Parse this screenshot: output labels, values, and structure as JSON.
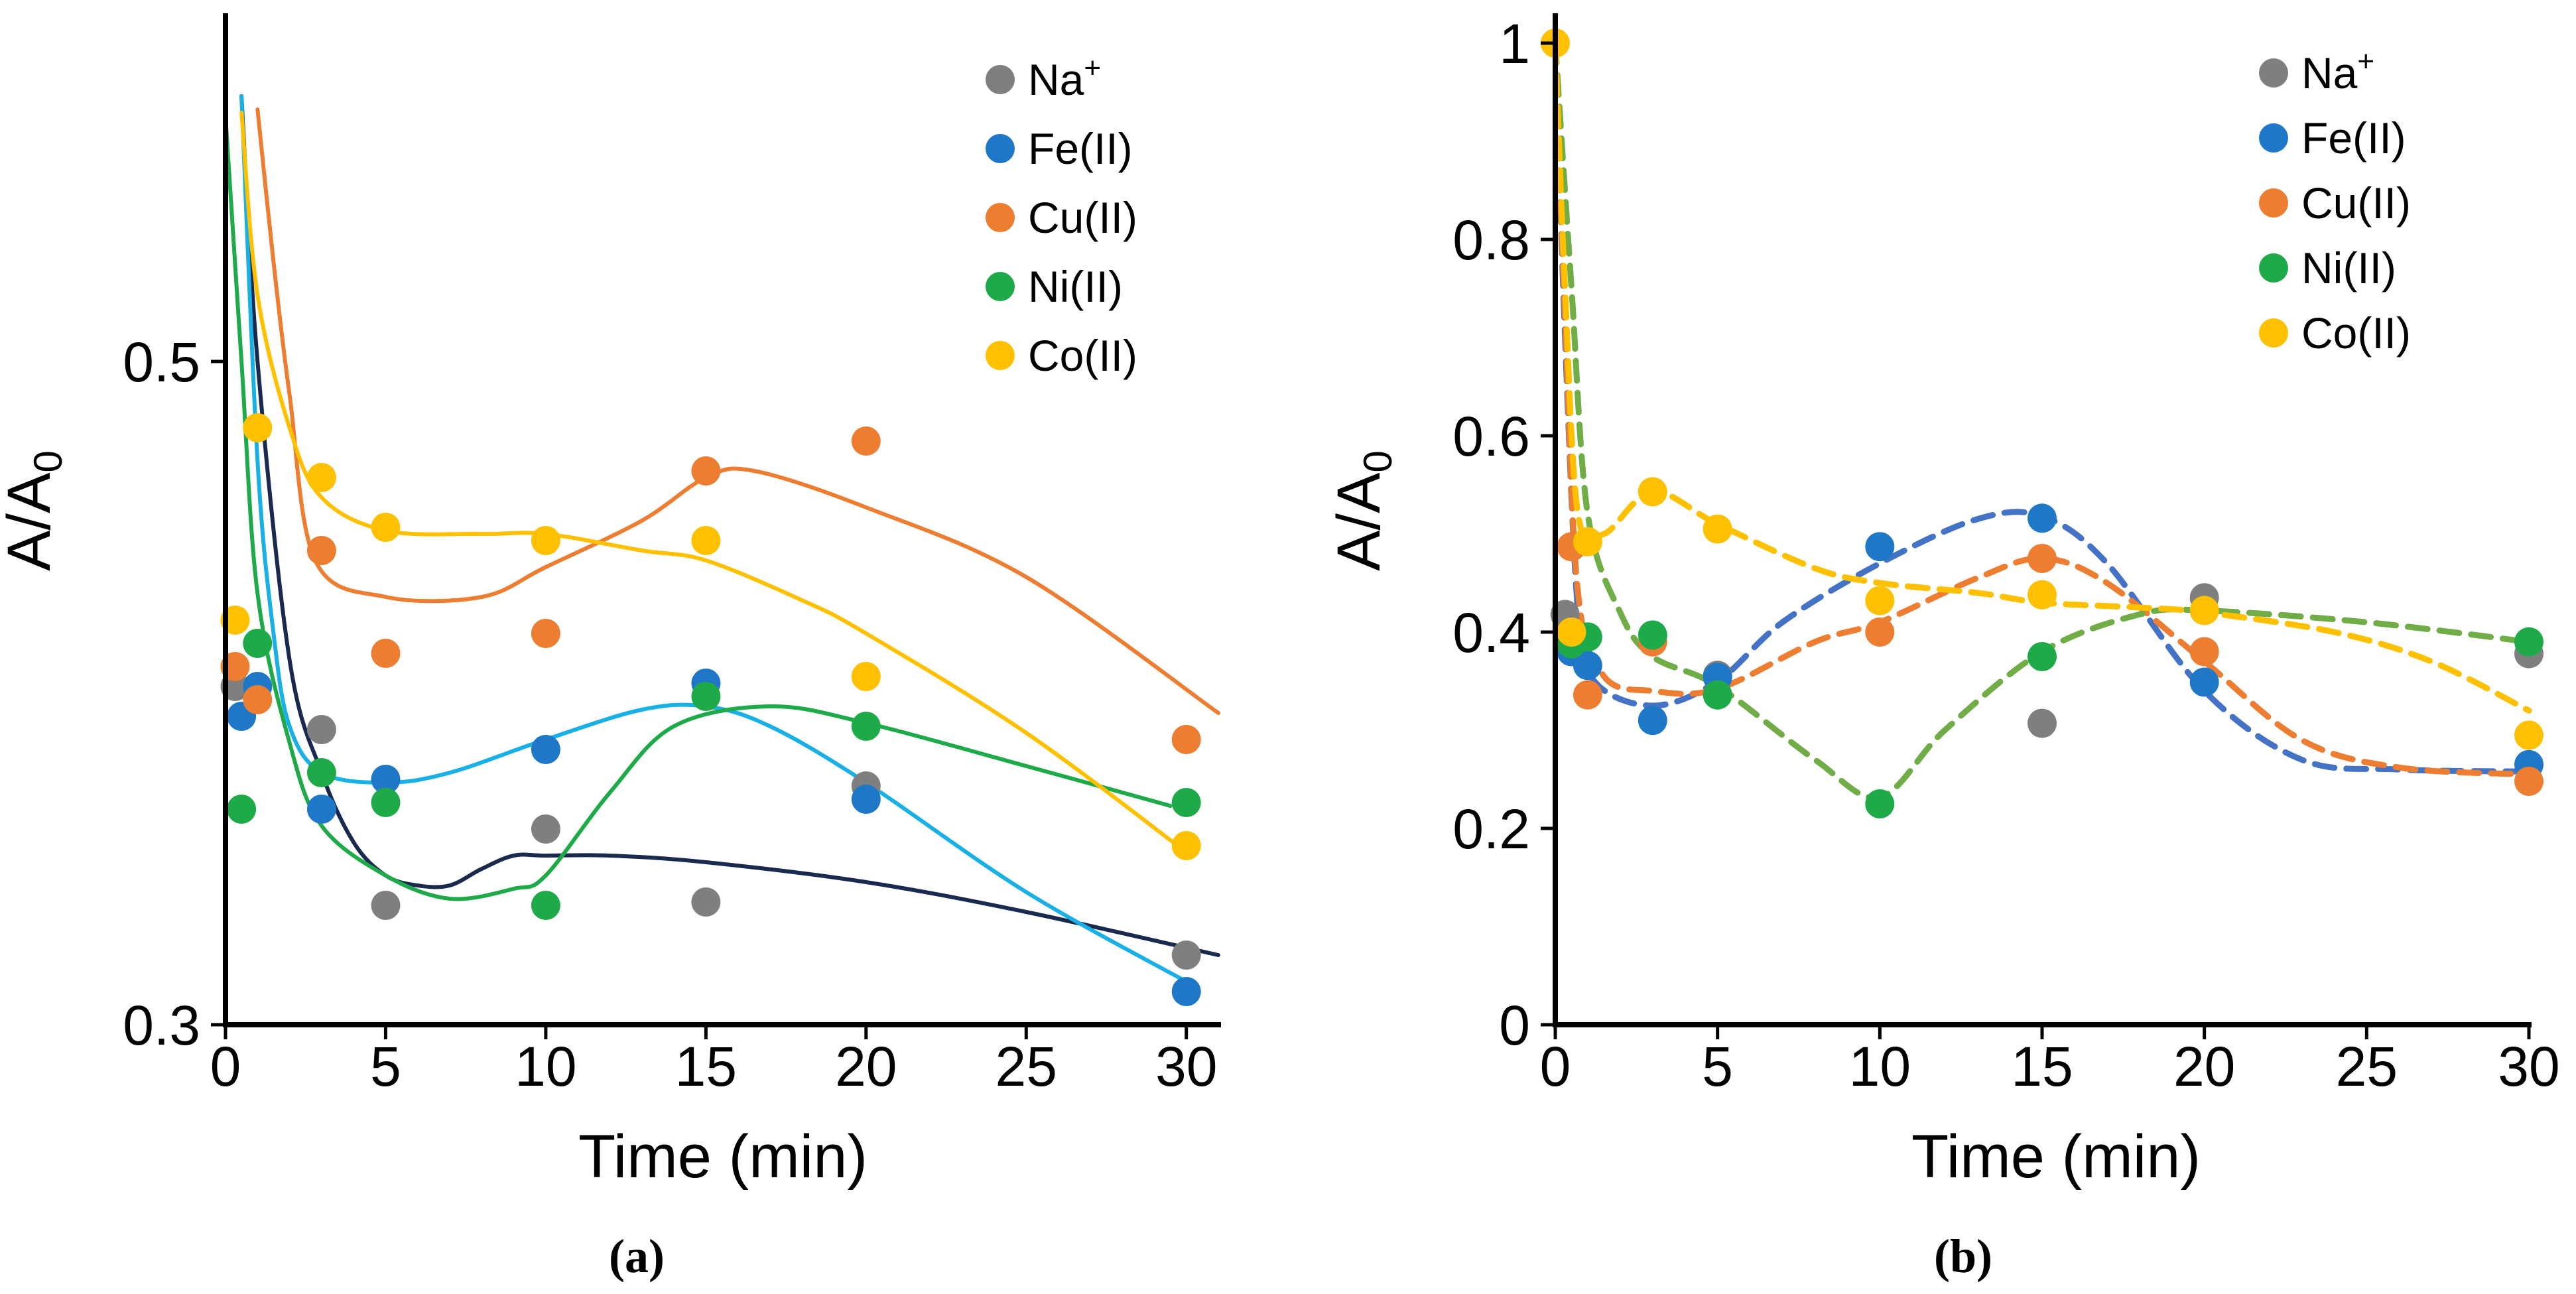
{
  "chart_data": [
    {
      "panel": "a",
      "type": "scatter",
      "panel_label": "(a)",
      "xlabel": "Time (min)",
      "ylabel": "A/A",
      "ylabel_sub": "0",
      "xlim": [
        0,
        31
      ],
      "ylim": [
        0.3,
        0.6
      ],
      "xticks": [
        0,
        5,
        10,
        15,
        20,
        25,
        30
      ],
      "yticks": [
        0.3,
        0.5
      ],
      "ytick_labels": [
        "0.3",
        "0.5"
      ],
      "legend_position": "top-right",
      "series": [
        {
          "name": "Na",
          "sup": "+",
          "color": "#7f7f7f",
          "points": [
            [
              0.3,
              0.402
            ],
            [
              3,
              0.389
            ],
            [
              5,
              0.336
            ],
            [
              10,
              0.359
            ],
            [
              15,
              0.337
            ],
            [
              20,
              0.372
            ],
            [
              30,
              0.321
            ]
          ],
          "curve": [
            [
              0.5,
              0.58
            ],
            [
              1,
              0.5
            ],
            [
              2,
              0.41
            ],
            [
              3,
              0.376
            ],
            [
              4,
              0.355
            ],
            [
              5,
              0.345
            ],
            [
              6,
              0.342
            ],
            [
              7,
              0.342
            ],
            [
              8,
              0.347
            ],
            [
              9,
              0.351
            ],
            [
              10,
              0.351
            ],
            [
              12,
              0.351
            ],
            [
              15,
              0.349
            ],
            [
              20,
              0.343
            ],
            [
              25,
              0.334
            ],
            [
              31,
              0.321
            ]
          ]
        },
        {
          "name": "Fe(II)",
          "color": "#1f77c8",
          "points": [
            [
              0.5,
              0.393
            ],
            [
              1,
              0.402
            ],
            [
              3,
              0.365
            ],
            [
              5,
              0.374
            ],
            [
              10,
              0.383
            ],
            [
              15,
              0.403
            ],
            [
              20,
              0.368
            ],
            [
              30,
              0.31
            ]
          ],
          "curve": [
            [
              0.5,
              0.58
            ],
            [
              1,
              0.47
            ],
            [
              1.5,
              0.418
            ],
            [
              2,
              0.39
            ],
            [
              3,
              0.376
            ],
            [
              5,
              0.373
            ],
            [
              7,
              0.376
            ],
            [
              10,
              0.386
            ],
            [
              13,
              0.395
            ],
            [
              15,
              0.396
            ],
            [
              17,
              0.39
            ],
            [
              20,
              0.373
            ],
            [
              25,
              0.34
            ],
            [
              30,
              0.313
            ]
          ]
        },
        {
          "name": "Cu(II)",
          "color": "#ed7d31",
          "points": [
            [
              0.3,
              0.408
            ],
            [
              1,
              0.398
            ],
            [
              3,
              0.443
            ],
            [
              5,
              0.412
            ],
            [
              10,
              0.418
            ],
            [
              15,
              0.467
            ],
            [
              20,
              0.476
            ],
            [
              30,
              0.386
            ]
          ],
          "curve": [
            [
              1,
              0.576
            ],
            [
              1.5,
              0.53
            ],
            [
              2,
              0.49
            ],
            [
              2.8,
              0.44
            ],
            [
              5,
              0.429
            ],
            [
              8,
              0.429
            ],
            [
              10,
              0.438
            ],
            [
              13,
              0.452
            ],
            [
              15,
              0.465
            ],
            [
              16.5,
              0.467
            ],
            [
              20,
              0.456
            ],
            [
              25,
              0.435
            ],
            [
              31,
              0.394
            ]
          ]
        },
        {
          "name": "Ni(II)",
          "color": "#1faa4a",
          "points": [
            [
              0.5,
              0.365
            ],
            [
              1,
              0.415
            ],
            [
              3,
              0.376
            ],
            [
              5,
              0.367
            ],
            [
              10,
              0.336
            ],
            [
              15,
              0.399
            ],
            [
              20,
              0.39
            ],
            [
              30,
              0.367
            ]
          ],
          "curve": [
            [
              0,
              0.574
            ],
            [
              0.5,
              0.5
            ],
            [
              1,
              0.43
            ],
            [
              2,
              0.385
            ],
            [
              3,
              0.36
            ],
            [
              5,
              0.345
            ],
            [
              7,
              0.338
            ],
            [
              9,
              0.341
            ],
            [
              10,
              0.345
            ],
            [
              12,
              0.37
            ],
            [
              14,
              0.39
            ],
            [
              17,
              0.396
            ],
            [
              20,
              0.391
            ],
            [
              25,
              0.378
            ],
            [
              29.5,
              0.366
            ]
          ]
        },
        {
          "name": "Co(II)",
          "color": "#ffc000",
          "points": [
            [
              0.3,
              0.422
            ],
            [
              1,
              0.48
            ],
            [
              3,
              0.465
            ],
            [
              5,
              0.45
            ],
            [
              10,
              0.446
            ],
            [
              15,
              0.446
            ],
            [
              20,
              0.405
            ],
            [
              30,
              0.354
            ]
          ],
          "curve": [
            [
              0.5,
              0.575
            ],
            [
              1,
              0.52
            ],
            [
              2,
              0.48
            ],
            [
              3,
              0.459
            ],
            [
              5,
              0.449
            ],
            [
              8,
              0.448
            ],
            [
              10,
              0.448
            ],
            [
              13,
              0.443
            ],
            [
              15,
              0.44
            ],
            [
              18,
              0.428
            ],
            [
              20,
              0.418
            ],
            [
              25,
              0.388
            ],
            [
              30,
              0.352
            ]
          ]
        }
      ]
    },
    {
      "panel": "b",
      "type": "scatter",
      "panel_label": "(b)",
      "xlabel": "Time (min)",
      "ylabel": "A/A",
      "ylabel_sub": "0",
      "xlim": [
        0,
        30
      ],
      "ylim": [
        0,
        1
      ],
      "xticks": [
        0,
        5,
        10,
        15,
        20,
        25,
        30
      ],
      "yticks": [
        0,
        0.2,
        0.4,
        0.6,
        0.8,
        1
      ],
      "ytick_labels": [
        "0",
        "0.2",
        "0.4",
        "0.6",
        "0.8",
        "1"
      ],
      "legend_position": "top-right",
      "series": [
        {
          "name": "Na",
          "sup": "+",
          "color": "#7f7f7f",
          "points": [
            [
              0.3,
              0.418
            ],
            [
              0.5,
              0.39
            ],
            [
              5,
              0.356
            ],
            [
              15,
              0.307
            ],
            [
              20,
              0.435
            ],
            [
              30,
              0.378
            ]
          ],
          "curve": []
        },
        {
          "name": "Fe(II)",
          "color": "#1f77c8",
          "curve_color": "#4472c4",
          "points": [
            [
              0.5,
              0.38
            ],
            [
              1,
              0.366
            ],
            [
              3,
              0.31
            ],
            [
              5,
              0.354
            ],
            [
              10,
              0.487
            ],
            [
              15,
              0.516
            ],
            [
              20,
              0.349
            ],
            [
              30,
              0.265
            ]
          ],
          "curve": [
            [
              0,
              1
            ],
            [
              0.3,
              0.7
            ],
            [
              0.7,
              0.42
            ],
            [
              1.2,
              0.35
            ],
            [
              3,
              0.325
            ],
            [
              5,
              0.35
            ],
            [
              7,
              0.41
            ],
            [
              10,
              0.47
            ],
            [
              13,
              0.515
            ],
            [
              15,
              0.518
            ],
            [
              17,
              0.47
            ],
            [
              20,
              0.34
            ],
            [
              23,
              0.27
            ],
            [
              26,
              0.26
            ],
            [
              30,
              0.258
            ]
          ]
        },
        {
          "name": "Cu(II)",
          "color": "#ed7d31",
          "points": [
            [
              0.5,
              0.487
            ],
            [
              1,
              0.336
            ],
            [
              3,
              0.39
            ],
            [
              5,
              0.336
            ],
            [
              10,
              0.4
            ],
            [
              15,
              0.475
            ],
            [
              20,
              0.38
            ],
            [
              30,
              0.248
            ]
          ],
          "curve": [
            [
              0,
              1
            ],
            [
              0.3,
              0.72
            ],
            [
              0.7,
              0.44
            ],
            [
              1.5,
              0.355
            ],
            [
              3,
              0.34
            ],
            [
              5,
              0.342
            ],
            [
              8,
              0.39
            ],
            [
              10,
              0.41
            ],
            [
              13,
              0.455
            ],
            [
              15,
              0.475
            ],
            [
              17,
              0.45
            ],
            [
              20,
              0.37
            ],
            [
              23,
              0.29
            ],
            [
              26,
              0.262
            ],
            [
              30,
              0.255
            ]
          ]
        },
        {
          "name": "Ni(II)",
          "color": "#1faa4a",
          "curve_color": "#70ad47",
          "points": [
            [
              0.5,
              0.388
            ],
            [
              1,
              0.395
            ],
            [
              3,
              0.397
            ],
            [
              5,
              0.336
            ],
            [
              10,
              0.225
            ],
            [
              15,
              0.375
            ],
            [
              20,
              0.422
            ],
            [
              30,
              0.39
            ]
          ],
          "curve": [
            [
              0,
              1
            ],
            [
              0.5,
              0.75
            ],
            [
              1,
              0.52
            ],
            [
              2,
              0.42
            ],
            [
              3,
              0.375
            ],
            [
              5,
              0.345
            ],
            [
              8,
              0.27
            ],
            [
              10,
              0.232
            ],
            [
              12,
              0.3
            ],
            [
              15,
              0.38
            ],
            [
              18,
              0.418
            ],
            [
              20,
              0.422
            ],
            [
              25,
              0.41
            ],
            [
              30,
              0.39
            ]
          ]
        },
        {
          "name": "Co(II)",
          "color": "#ffc000",
          "points": [
            [
              0,
              1
            ],
            [
              0.5,
              0.4
            ],
            [
              1,
              0.492
            ],
            [
              3,
              0.543
            ],
            [
              5,
              0.505
            ],
            [
              10,
              0.432
            ],
            [
              15,
              0.438
            ],
            [
              20,
              0.422
            ],
            [
              30,
              0.295
            ]
          ],
          "curve": [
            [
              0,
              1
            ],
            [
              0.3,
              0.75
            ],
            [
              0.7,
              0.52
            ],
            [
              1.5,
              0.5
            ],
            [
              3,
              0.543
            ],
            [
              5,
              0.51
            ],
            [
              8,
              0.465
            ],
            [
              10,
              0.45
            ],
            [
              13,
              0.44
            ],
            [
              15,
              0.43
            ],
            [
              18,
              0.425
            ],
            [
              20,
              0.42
            ],
            [
              24,
              0.4
            ],
            [
              27,
              0.37
            ],
            [
              30,
              0.32
            ]
          ]
        }
      ]
    }
  ]
}
